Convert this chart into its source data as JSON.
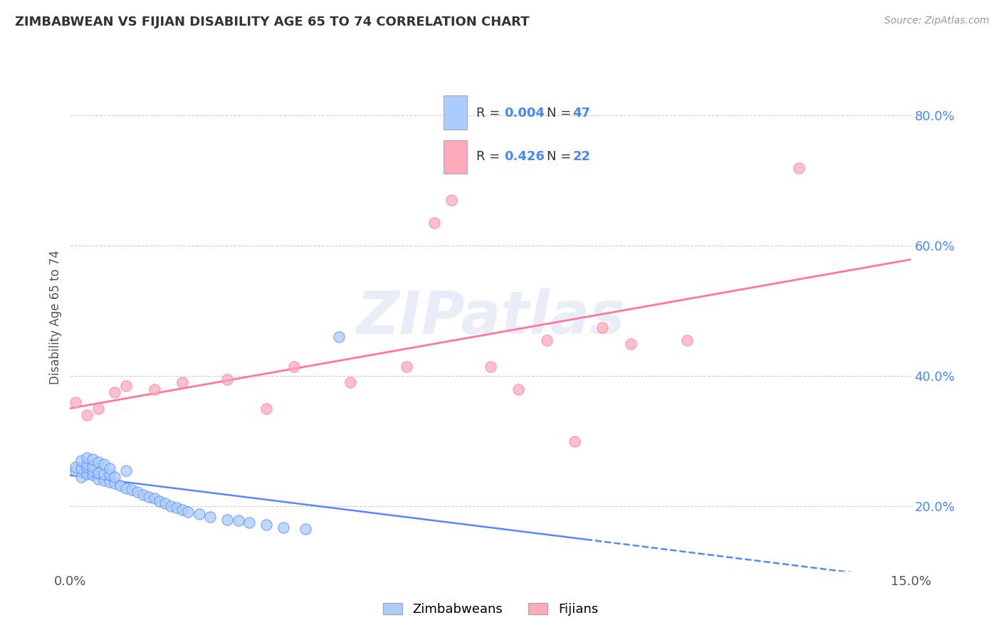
{
  "title": "ZIMBABWEAN VS FIJIAN DISABILITY AGE 65 TO 74 CORRELATION CHART",
  "source": "Source: ZipAtlas.com",
  "ylabel": "Disability Age 65 to 74",
  "xlim": [
    0.0,
    0.15
  ],
  "ylim": [
    0.1,
    0.88
  ],
  "x_ticks": [
    0.0,
    0.15
  ],
  "x_tick_labels": [
    "0.0%",
    "15.0%"
  ],
  "y_ticks_right": [
    0.2,
    0.4,
    0.6,
    0.8
  ],
  "y_tick_labels_right": [
    "20.0%",
    "40.0%",
    "60.0%",
    "80.0%"
  ],
  "grid_color": "#cccccc",
  "background_color": "#ffffff",
  "zimbabwean_color": "#aaccff",
  "fijian_color": "#ffaabb",
  "zimbabwean_line_color": "#5588ff",
  "fijian_line_color": "#ff7799",
  "R_zimbabwean": 0.004,
  "N_zimbabwean": 47,
  "R_fijian": 0.426,
  "N_fijian": 22,
  "legend_labels": [
    "Zimbabweans",
    "Fijians"
  ],
  "watermark": "ZIPatlas",
  "zimbabwean_x": [
    0.001,
    0.001,
    0.002,
    0.002,
    0.002,
    0.003,
    0.003,
    0.003,
    0.003,
    0.004,
    0.004,
    0.004,
    0.004,
    0.005,
    0.005,
    0.005,
    0.006,
    0.006,
    0.006,
    0.007,
    0.007,
    0.007,
    0.008,
    0.008,
    0.009,
    0.01,
    0.01,
    0.011,
    0.012,
    0.013,
    0.014,
    0.015,
    0.016,
    0.017,
    0.018,
    0.019,
    0.02,
    0.021,
    0.023,
    0.025,
    0.028,
    0.03,
    0.032,
    0.035,
    0.038,
    0.042,
    0.048
  ],
  "zimbabwean_y": [
    0.255,
    0.26,
    0.245,
    0.258,
    0.27,
    0.25,
    0.26,
    0.265,
    0.275,
    0.248,
    0.255,
    0.262,
    0.272,
    0.242,
    0.252,
    0.268,
    0.24,
    0.25,
    0.265,
    0.238,
    0.248,
    0.258,
    0.235,
    0.245,
    0.232,
    0.228,
    0.255,
    0.225,
    0.222,
    0.218,
    0.215,
    0.212,
    0.208,
    0.205,
    0.2,
    0.198,
    0.195,
    0.192,
    0.188,
    0.184,
    0.18,
    0.178,
    0.175,
    0.172,
    0.168,
    0.165,
    0.46
  ],
  "fijian_x": [
    0.001,
    0.003,
    0.005,
    0.008,
    0.01,
    0.015,
    0.02,
    0.028,
    0.035,
    0.04,
    0.05,
    0.06,
    0.065,
    0.068,
    0.075,
    0.08,
    0.085,
    0.09,
    0.095,
    0.1,
    0.11,
    0.13
  ],
  "fijian_y": [
    0.36,
    0.34,
    0.35,
    0.375,
    0.385,
    0.38,
    0.39,
    0.395,
    0.35,
    0.415,
    0.39,
    0.415,
    0.635,
    0.67,
    0.415,
    0.38,
    0.455,
    0.3,
    0.475,
    0.45,
    0.455,
    0.72
  ]
}
